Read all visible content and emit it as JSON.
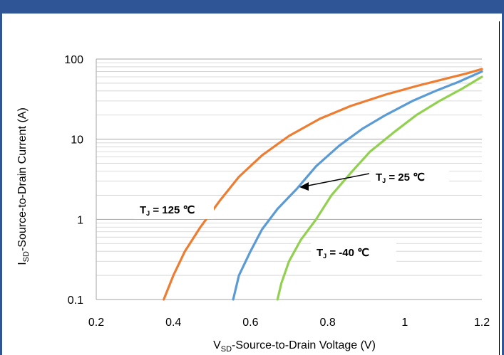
{
  "chart_data": {
    "type": "line",
    "xlabel_main": "V",
    "xlabel_sub": "SD",
    "xlabel_rest": "-Source-to-Drain Voltage (V)",
    "ylabel_main": "I",
    "ylabel_sub": "SD",
    "ylabel_rest": "-Source-to-Drain Current (A)",
    "xlim": [
      0.2,
      1.2
    ],
    "ylim": [
      0.1,
      100
    ],
    "yscale": "log",
    "grid": "y-major-and-minor",
    "x_ticks": [
      "0.2",
      "0.4",
      "0.6",
      "0.8",
      "1",
      "1.2"
    ],
    "y_ticks": [
      "0.1",
      "1",
      "10",
      "100"
    ],
    "series": [
      {
        "name": "T_J = 125 ℃",
        "label_main": "T",
        "label_sub": "J",
        "label_rest": " = 125 ℃",
        "color": "#ed7d31",
        "x": [
          0.375,
          0.4,
          0.43,
          0.47,
          0.52,
          0.57,
          0.63,
          0.7,
          0.78,
          0.86,
          0.95,
          1.03,
          1.1,
          1.16,
          1.2
        ],
        "y": [
          0.1,
          0.2,
          0.4,
          0.8,
          1.7,
          3.4,
          6.3,
          11,
          18,
          26,
          36,
          46,
          56,
          66,
          75
        ]
      },
      {
        "name": "T_J = 25 ℃",
        "label_main": "T",
        "label_sub": "J",
        "label_rest": " = 25 ℃",
        "color": "#5b9bd5",
        "x": [
          0.555,
          0.57,
          0.6,
          0.63,
          0.67,
          0.72,
          0.77,
          0.83,
          0.89,
          0.95,
          1.02,
          1.08,
          1.14,
          1.2
        ],
        "y": [
          0.1,
          0.2,
          0.4,
          0.75,
          1.35,
          2.4,
          4.6,
          8.3,
          13.5,
          20,
          30,
          40,
          52,
          70
        ]
      },
      {
        "name": "T_J = -40 ℃",
        "label_main": "T",
        "label_sub": "J",
        "label_rest": " = -40 ℃",
        "color": "#92d050",
        "x": [
          0.67,
          0.68,
          0.7,
          0.73,
          0.77,
          0.81,
          0.86,
          0.91,
          0.97,
          1.03,
          1.09,
          1.15,
          1.2
        ],
        "y": [
          0.1,
          0.16,
          0.3,
          0.55,
          1.0,
          2.0,
          3.8,
          7.0,
          12,
          20,
          30,
          43,
          60
        ]
      }
    ]
  }
}
